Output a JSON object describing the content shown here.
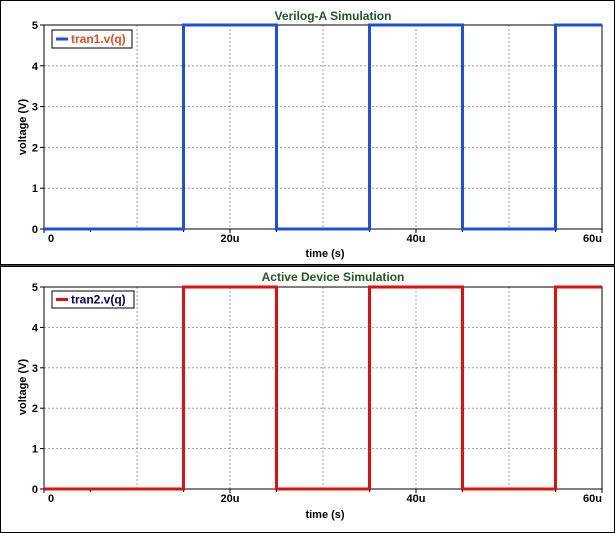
{
  "chart_data": [
    {
      "type": "line",
      "title": "Verilog-A Simulation",
      "xlabel": "time (s)",
      "ylabel": "voltage (V)",
      "xlim": [
        0,
        60
      ],
      "ylim": [
        0,
        5
      ],
      "x_ticks": [
        "0",
        "20u",
        "40u",
        "60u"
      ],
      "y_ticks": [
        "0",
        "1",
        "2",
        "3",
        "4",
        "5"
      ],
      "legend_position": "top-left",
      "grid": true,
      "series": [
        {
          "name": "tran1.v(q)",
          "color": "#1f4fe0",
          "x": [
            0,
            15,
            15,
            25,
            25,
            35,
            35,
            45,
            45,
            55,
            55,
            60
          ],
          "y": [
            0,
            0,
            5,
            5,
            0,
            0,
            5,
            5,
            0,
            0,
            5,
            5
          ]
        }
      ]
    },
    {
      "type": "line",
      "title": "Active Device Simulation",
      "xlabel": "time (s)",
      "ylabel": "voltage (V)",
      "xlim": [
        0,
        60
      ],
      "ylim": [
        0,
        5
      ],
      "x_ticks": [
        "0",
        "20u",
        "40u",
        "60u"
      ],
      "y_ticks": [
        "0",
        "1",
        "2",
        "3",
        "4",
        "5"
      ],
      "legend_position": "top-left",
      "grid": true,
      "series": [
        {
          "name": "tran2.v(q)",
          "color": "#e01010",
          "x": [
            0,
            15,
            15,
            25,
            25,
            35,
            35,
            45,
            45,
            55,
            55,
            60
          ],
          "y": [
            0,
            0,
            5,
            5,
            0,
            0,
            5,
            5,
            0,
            0,
            5,
            5
          ]
        }
      ]
    }
  ],
  "colors": {
    "title": "#1f5a1f",
    "legend_text_top": "#e0501a",
    "legend_text_bottom": "#000066"
  }
}
